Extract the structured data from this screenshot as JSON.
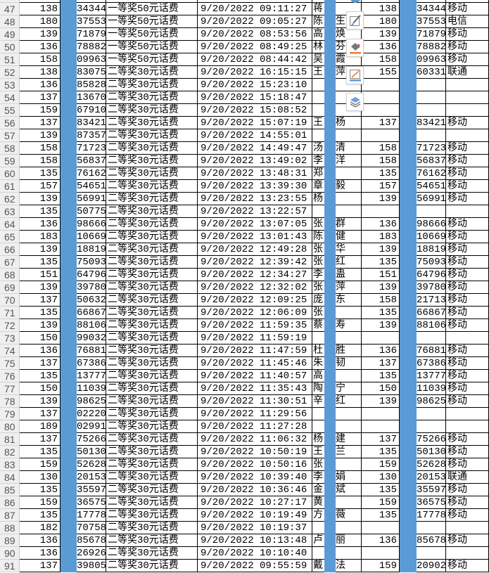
{
  "colors": {
    "highlight_column": "#5b9bd5",
    "header_bg": "#efefef"
  },
  "toolbar": {
    "icons": [
      "edit-pen-icon",
      "fill-color-icon",
      "border-color-icon",
      "layers-icon"
    ]
  },
  "rows": [
    [
      "47",
      "138",
      "34344",
      "一等奖50元话费",
      "9/20/2022 09:11:27",
      "蒋",
      "",
      "138",
      "34344",
      "移动"
    ],
    [
      "48",
      "180",
      "37553",
      "一等奖50元话费",
      "9/20/2022 09:05:27",
      "陈",
      "生",
      "180",
      "37553",
      "电信"
    ],
    [
      "49",
      "139",
      "71879",
      "一等奖50元话费",
      "9/20/2022 08:53:56",
      "高",
      "焕",
      "139",
      "71879",
      "移动"
    ],
    [
      "50",
      "136",
      "78882",
      "一等奖50元话费",
      "9/20/2022 08:49:25",
      "林",
      "芬",
      "136",
      "78882",
      "移动"
    ],
    [
      "51",
      "158",
      "09963",
      "一等奖50元话费",
      "9/20/2022 08:44:42",
      "吴",
      "霞",
      "158",
      "09963",
      "移动"
    ],
    [
      "52",
      "138",
      "83075",
      "二等奖30元话费",
      "9/20/2022 16:15:15",
      "王",
      "萍",
      "155",
      "60331",
      "联通"
    ],
    [
      "53",
      "136",
      "85828",
      "二等奖30元话费",
      "9/20/2022 15:23:10",
      "",
      "",
      "",
      "",
      ""
    ],
    [
      "54",
      "137",
      "13670",
      "二等奖30元话费",
      "9/20/2022 15:18:47",
      "",
      "",
      "",
      "",
      ""
    ],
    [
      "55",
      "159",
      "67910",
      "二等奖30元话费",
      "9/20/2022 15:08:52",
      "",
      "",
      "",
      "",
      ""
    ],
    [
      "56",
      "137",
      "83421",
      "二等奖30元话费",
      "9/20/2022 15:07:19",
      "王",
      "杨",
      "137",
      "83421",
      "移动"
    ],
    [
      "57",
      "139",
      "87357",
      "二等奖30元话费",
      "9/20/2022 14:55:01",
      "",
      "",
      "",
      "",
      ""
    ],
    [
      "58",
      "158",
      "71723",
      "二等奖30元话费",
      "9/20/2022 14:49:47",
      "汤",
      "清",
      "158",
      "71723",
      "移动"
    ],
    [
      "59",
      "158",
      "56837",
      "二等奖30元话费",
      "9/20/2022 13:49:02",
      "李",
      "洋",
      "158",
      "56837",
      "移动"
    ],
    [
      "60",
      "135",
      "76162",
      "二等奖30元话费",
      "9/20/2022 13:48:31",
      "郑",
      "",
      "135",
      "76162",
      "移动"
    ],
    [
      "61",
      "157",
      "54651",
      "二等奖30元话费",
      "9/20/2022 13:39:30",
      "章",
      "毅",
      "157",
      "54651",
      "移动"
    ],
    [
      "62",
      "139",
      "56991",
      "二等奖30元话费",
      "9/20/2022 13:23:55",
      "杨",
      "",
      "139",
      "56991",
      "移动"
    ],
    [
      "63",
      "135",
      "50775",
      "二等奖30元话费",
      "9/20/2022 13:22:57",
      "",
      "",
      "",
      "",
      ""
    ],
    [
      "64",
      "136",
      "98666",
      "二等奖30元话费",
      "9/20/2022 13:07:05",
      "张",
      "群",
      "136",
      "98666",
      "移动"
    ],
    [
      "65",
      "183",
      "10669",
      "二等奖30元话费",
      "9/20/2022 13:01:43",
      "陈",
      "健",
      "183",
      "10669",
      "移动"
    ],
    [
      "66",
      "139",
      "18819",
      "二等奖30元话费",
      "9/20/2022 12:49:28",
      "张",
      "华",
      "139",
      "18819",
      "移动"
    ],
    [
      "67",
      "135",
      "75093",
      "二等奖30元话费",
      "9/20/2022 12:39:42",
      "张",
      "红",
      "135",
      "75093",
      "移动"
    ],
    [
      "68",
      "151",
      "64796",
      "二等奖30元话费",
      "9/20/2022 12:34:27",
      "李",
      "蛊",
      "151",
      "64796",
      "移动"
    ],
    [
      "69",
      "139",
      "39780",
      "二等奖30元话费",
      "9/20/2022 12:32:02",
      "张",
      "萍",
      "139",
      "39780",
      "移动"
    ],
    [
      "70",
      "137",
      "50632",
      "二等奖30元话费",
      "9/20/2022 12:09:25",
      "庞",
      "东",
      "158",
      "21713",
      "移动"
    ],
    [
      "71",
      "135",
      "66867",
      "二等奖30元话费",
      "9/20/2022 12:06:09",
      "张",
      "",
      "135",
      "66867",
      "移动"
    ],
    [
      "72",
      "139",
      "88106",
      "二等奖30元话费",
      "9/20/2022 11:59:35",
      "蔡",
      "寿",
      "139",
      "88106",
      "移动"
    ],
    [
      "73",
      "150",
      "99032",
      "二等奖30元话费",
      "9/20/2022 11:59:19",
      "",
      "",
      "",
      "",
      ""
    ],
    [
      "74",
      "136",
      "76881",
      "二等奖30元话费",
      "9/20/2022 11:47:59",
      "杜",
      "胜",
      "136",
      "76881",
      "移动"
    ],
    [
      "75",
      "137",
      "67386",
      "二等奖30元话费",
      "9/20/2022 11:45:46",
      "朱",
      "韧",
      "137",
      "67386",
      "移动"
    ],
    [
      "76",
      "135",
      "13777",
      "二等奖30元话费",
      "9/20/2022 11:40:57",
      "高",
      "",
      "135",
      "13777",
      "移动"
    ],
    [
      "77",
      "150",
      "11039",
      "二等奖30元话费",
      "9/20/2022 11:35:43",
      "陶",
      "宁",
      "150",
      "11039",
      "移动"
    ],
    [
      "78",
      "139",
      "98625",
      "二等奖30元话费",
      "9/20/2022 11:30:51",
      "辛",
      "红",
      "139",
      "98625",
      "移动"
    ],
    [
      "79",
      "137",
      "02220",
      "二等奖30元话费",
      "9/20/2022 11:29:56",
      "",
      "",
      "",
      "",
      ""
    ],
    [
      "80",
      "189",
      "02991",
      "二等奖30元话费",
      "9/20/2022 11:27:28",
      "",
      "",
      "",
      "",
      ""
    ],
    [
      "81",
      "137",
      "75266",
      "二等奖30元话费",
      "9/20/2022 11:06:32",
      "杨",
      "建",
      "137",
      "75266",
      "移动"
    ],
    [
      "82",
      "135",
      "50130",
      "二等奖30元话费",
      "9/20/2022 10:50:19",
      "王",
      "兰",
      "135",
      "50130",
      "移动"
    ],
    [
      "83",
      "159",
      "52628",
      "二等奖30元话费",
      "9/20/2022 10:50:16",
      "张",
      "",
      "159",
      "52628",
      "移动"
    ],
    [
      "84",
      "130",
      "20153",
      "二等奖30元话费",
      "9/20/2022 10:39:40",
      "李",
      "娟",
      "130",
      "20153",
      "联通"
    ],
    [
      "85",
      "135",
      "35597",
      "二等奖30元话费",
      "9/20/2022 10:36:46",
      "金",
      "斌",
      "135",
      "35597",
      "移动"
    ],
    [
      "86",
      "159",
      "36575",
      "二等奖30元话费",
      "9/20/2022 10:27:17",
      "黄",
      "",
      "159",
      "36575",
      "移动"
    ],
    [
      "87",
      "135",
      "17778",
      "二等奖30元话费",
      "9/20/2022 10:19:49",
      "方",
      "薇",
      "135",
      "17778",
      "移动"
    ],
    [
      "88",
      "182",
      "70758",
      "二等奖30元话费",
      "9/20/2022 10:19:37",
      "",
      "",
      "",
      "",
      ""
    ],
    [
      "89",
      "136",
      "85678",
      "二等奖30元话费",
      "9/20/2022 10:13:48",
      "卢",
      "丽",
      "136",
      "85678",
      "移动"
    ],
    [
      "90",
      "136",
      "26926",
      "二等奖30元话费",
      "9/20/2022 10:10:40",
      "",
      "",
      "",
      "",
      ""
    ],
    [
      "91",
      "137",
      "39805",
      "二等奖30元话费",
      "9/20/2022 09:55:59",
      "戴",
      "法",
      "159",
      "20902",
      "移动"
    ]
  ]
}
